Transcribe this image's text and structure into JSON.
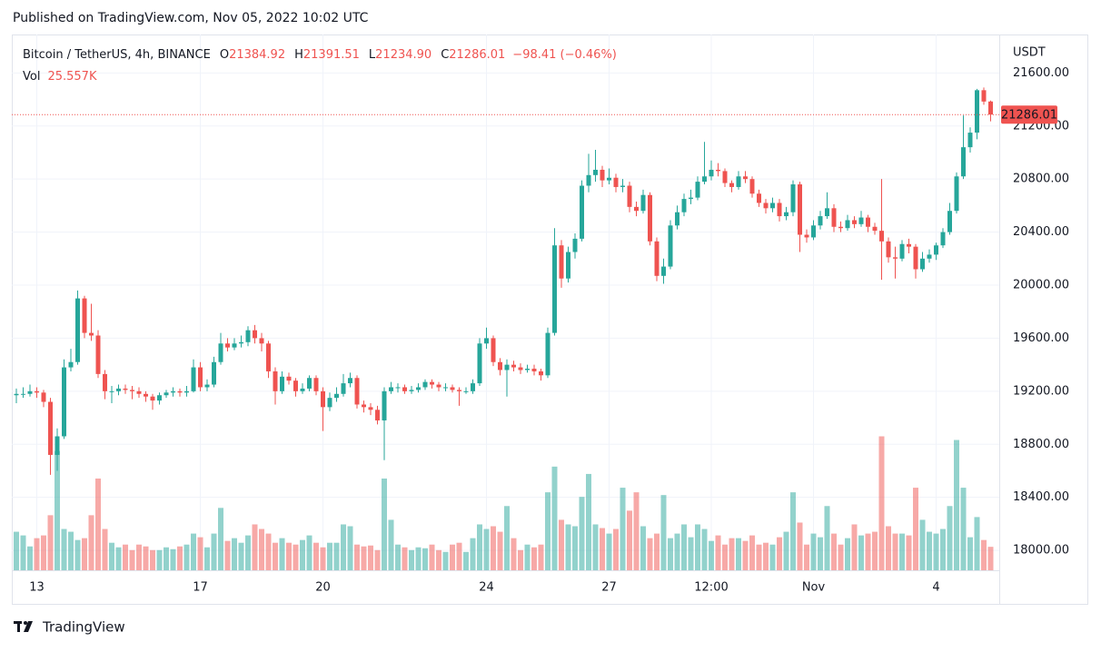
{
  "header": "Published on TradingView.com, Nov 05, 2022 10:02 UTC",
  "footer": "TradingView",
  "chart_data": {
    "type": "candlestick",
    "symbol": "Bitcoin / TetherUS, 4h, BINANCE",
    "ohlc_keys": [
      "O",
      "H",
      "L",
      "C"
    ],
    "legend_values": [
      "21384.92",
      "21391.51",
      "21234.90",
      "21286.01"
    ],
    "change_label": "−98.41 (−0.46%)",
    "volume_name": "Vol",
    "volume_last_label": "25.557K",
    "currency": "USDT",
    "up_color": "#26a69a",
    "down_color": "#ef5350",
    "grid": true,
    "ylim": [
      17850,
      21890
    ],
    "yticks": [
      {
        "value": 18000,
        "label": "18000.00"
      },
      {
        "value": 18400,
        "label": "18400.00"
      },
      {
        "value": 18800,
        "label": "18800.00"
      },
      {
        "value": 19200,
        "label": "19200.00"
      },
      {
        "value": 19600,
        "label": "19600.00"
      },
      {
        "value": 20000,
        "label": "20000.00"
      },
      {
        "value": 20400,
        "label": "20400.00"
      },
      {
        "value": 20800,
        "label": "20800.00"
      },
      {
        "value": 21200,
        "label": "21200.00"
      },
      {
        "value": 21600,
        "label": "21600.00"
      }
    ],
    "xticks": [
      {
        "value": 3,
        "label": "13"
      },
      {
        "value": 27,
        "label": "17"
      },
      {
        "value": 45,
        "label": "20"
      },
      {
        "value": 69,
        "label": "24"
      },
      {
        "value": 87,
        "label": "27"
      },
      {
        "value": 102,
        "label": "12:00"
      },
      {
        "value": 117,
        "label": "Nov"
      },
      {
        "value": 135,
        "label": "4"
      }
    ],
    "ohlc": [
      [
        19170,
        19220,
        19110,
        19180
      ],
      [
        19180,
        19230,
        19150,
        19180
      ],
      [
        19180,
        19250,
        19160,
        19200
      ],
      [
        19200,
        19230,
        19150,
        19190
      ],
      [
        19190,
        19210,
        19080,
        19120
      ],
      [
        19120,
        19150,
        18570,
        18720
      ],
      [
        18720,
        18920,
        18600,
        18860
      ],
      [
        18860,
        19440,
        18840,
        19380
      ],
      [
        19380,
        19520,
        19350,
        19420
      ],
      [
        19420,
        19960,
        19400,
        19900
      ],
      [
        19900,
        19920,
        19600,
        19640
      ],
      [
        19640,
        19860,
        19580,
        19620
      ],
      [
        19620,
        19660,
        19300,
        19330
      ],
      [
        19330,
        19360,
        19140,
        19200
      ],
      [
        19200,
        19240,
        19110,
        19200
      ],
      [
        19200,
        19250,
        19170,
        19220
      ],
      [
        19220,
        19250,
        19180,
        19210
      ],
      [
        19210,
        19240,
        19140,
        19200
      ],
      [
        19200,
        19230,
        19150,
        19180
      ],
      [
        19180,
        19200,
        19120,
        19160
      ],
      [
        19160,
        19180,
        19060,
        19130
      ],
      [
        19130,
        19190,
        19100,
        19170
      ],
      [
        19170,
        19210,
        19150,
        19190
      ],
      [
        19190,
        19230,
        19160,
        19200
      ],
      [
        19200,
        19220,
        19160,
        19190
      ],
      [
        19190,
        19240,
        19160,
        19200
      ],
      [
        19200,
        19440,
        19190,
        19380
      ],
      [
        19380,
        19420,
        19200,
        19230
      ],
      [
        19230,
        19290,
        19200,
        19250
      ],
      [
        19250,
        19460,
        19230,
        19420
      ],
      [
        19420,
        19640,
        19400,
        19560
      ],
      [
        19560,
        19600,
        19500,
        19530
      ],
      [
        19530,
        19600,
        19510,
        19560
      ],
      [
        19560,
        19620,
        19530,
        19570
      ],
      [
        19570,
        19690,
        19540,
        19660
      ],
      [
        19660,
        19700,
        19560,
        19600
      ],
      [
        19600,
        19640,
        19500,
        19560
      ],
      [
        19560,
        19580,
        19300,
        19350
      ],
      [
        19350,
        19380,
        19100,
        19200
      ],
      [
        19200,
        19350,
        19180,
        19310
      ],
      [
        19310,
        19340,
        19250,
        19280
      ],
      [
        19280,
        19300,
        19160,
        19200
      ],
      [
        19200,
        19260,
        19180,
        19220
      ],
      [
        19220,
        19320,
        19200,
        19300
      ],
      [
        19300,
        19320,
        19170,
        19200
      ],
      [
        19200,
        19230,
        18900,
        19080
      ],
      [
        19080,
        19190,
        19050,
        19150
      ],
      [
        19150,
        19230,
        19120,
        19180
      ],
      [
        19180,
        19330,
        19160,
        19260
      ],
      [
        19260,
        19340,
        19230,
        19300
      ],
      [
        19300,
        19320,
        19070,
        19100
      ],
      [
        19100,
        19130,
        19040,
        19080
      ],
      [
        19080,
        19110,
        19020,
        19060
      ],
      [
        19060,
        19090,
        18950,
        18980
      ],
      [
        18980,
        19230,
        18680,
        19200
      ],
      [
        19200,
        19270,
        19180,
        19230
      ],
      [
        19230,
        19260,
        19190,
        19230
      ],
      [
        19230,
        19250,
        19180,
        19200
      ],
      [
        19200,
        19240,
        19180,
        19210
      ],
      [
        19210,
        19260,
        19190,
        19230
      ],
      [
        19230,
        19290,
        19210,
        19270
      ],
      [
        19270,
        19290,
        19220,
        19250
      ],
      [
        19250,
        19270,
        19200,
        19230
      ],
      [
        19230,
        19260,
        19200,
        19230
      ],
      [
        19230,
        19250,
        19190,
        19210
      ],
      [
        19210,
        19230,
        19090,
        19200
      ],
      [
        19200,
        19230,
        19180,
        19200
      ],
      [
        19200,
        19290,
        19180,
        19260
      ],
      [
        19260,
        19600,
        19240,
        19560
      ],
      [
        19560,
        19680,
        19520,
        19600
      ],
      [
        19600,
        19620,
        19390,
        19420
      ],
      [
        19420,
        19450,
        19320,
        19360
      ],
      [
        19360,
        19440,
        19160,
        19400
      ],
      [
        19400,
        19430,
        19350,
        19380
      ],
      [
        19380,
        19410,
        19330,
        19360
      ],
      [
        19360,
        19400,
        19340,
        19370
      ],
      [
        19370,
        19400,
        19320,
        19350
      ],
      [
        19350,
        19370,
        19280,
        19320
      ],
      [
        19320,
        19680,
        19300,
        19640
      ],
      [
        19640,
        20430,
        19620,
        20300
      ],
      [
        20300,
        20340,
        19980,
        20050
      ],
      [
        20050,
        20290,
        20020,
        20250
      ],
      [
        20250,
        20390,
        20200,
        20350
      ],
      [
        20350,
        20790,
        20330,
        20750
      ],
      [
        20750,
        20990,
        20700,
        20830
      ],
      [
        20830,
        21020,
        20780,
        20870
      ],
      [
        20870,
        20900,
        20740,
        20790
      ],
      [
        20790,
        20880,
        20760,
        20810
      ],
      [
        20810,
        20840,
        20700,
        20740
      ],
      [
        20740,
        20800,
        20700,
        20750
      ],
      [
        20750,
        20780,
        20550,
        20590
      ],
      [
        20590,
        20630,
        20520,
        20560
      ],
      [
        20560,
        20720,
        20540,
        20680
      ],
      [
        20680,
        20700,
        20300,
        20330
      ],
      [
        20330,
        20360,
        20030,
        20070
      ],
      [
        20070,
        20200,
        20010,
        20140
      ],
      [
        20140,
        20490,
        20120,
        20450
      ],
      [
        20450,
        20600,
        20420,
        20550
      ],
      [
        20550,
        20690,
        20520,
        20650
      ],
      [
        20650,
        20720,
        20610,
        20660
      ],
      [
        20660,
        20820,
        20640,
        20780
      ],
      [
        20780,
        21080,
        20760,
        20820
      ],
      [
        20820,
        20940,
        20790,
        20870
      ],
      [
        20870,
        20920,
        20820,
        20860
      ],
      [
        20860,
        20880,
        20740,
        20770
      ],
      [
        20770,
        20790,
        20700,
        20740
      ],
      [
        20740,
        20860,
        20720,
        20820
      ],
      [
        20820,
        20860,
        20770,
        20800
      ],
      [
        20800,
        20820,
        20660,
        20690
      ],
      [
        20690,
        20720,
        20590,
        20620
      ],
      [
        20620,
        20650,
        20540,
        20580
      ],
      [
        20580,
        20660,
        20550,
        20620
      ],
      [
        20620,
        20650,
        20480,
        20520
      ],
      [
        20520,
        20590,
        20490,
        20550
      ],
      [
        20550,
        20790,
        20520,
        20760
      ],
      [
        20760,
        20780,
        20250,
        20380
      ],
      [
        20380,
        20420,
        20320,
        20360
      ],
      [
        20360,
        20490,
        20340,
        20450
      ],
      [
        20450,
        20560,
        20420,
        20520
      ],
      [
        20520,
        20700,
        20500,
        20580
      ],
      [
        20580,
        20610,
        20400,
        20440
      ],
      [
        20440,
        20480,
        20400,
        20430
      ],
      [
        20430,
        20530,
        20410,
        20490
      ],
      [
        20490,
        20520,
        20430,
        20460
      ],
      [
        20460,
        20560,
        20440,
        20510
      ],
      [
        20510,
        20530,
        20400,
        20440
      ],
      [
        20440,
        20470,
        20380,
        20410
      ],
      [
        20410,
        20800,
        20040,
        20330
      ],
      [
        20330,
        20360,
        20170,
        20210
      ],
      [
        20210,
        20290,
        20050,
        20200
      ],
      [
        20200,
        20340,
        20180,
        20310
      ],
      [
        20310,
        20350,
        20240,
        20290
      ],
      [
        20290,
        20310,
        20050,
        20120
      ],
      [
        20120,
        20250,
        20100,
        20200
      ],
      [
        20200,
        20270,
        20170,
        20230
      ],
      [
        20230,
        20320,
        20190,
        20300
      ],
      [
        20300,
        20430,
        20280,
        20400
      ],
      [
        20400,
        20620,
        20380,
        20560
      ],
      [
        20560,
        20850,
        20540,
        20820
      ],
      [
        20820,
        21280,
        20800,
        21040
      ],
      [
        21040,
        21190,
        21000,
        21150
      ],
      [
        21150,
        21480,
        21100,
        21470
      ],
      [
        21470,
        21490,
        21360,
        21384.42
      ],
      [
        21384.92,
        21391.51,
        21234.9,
        21286.01
      ]
    ],
    "volume": [
      42,
      38,
      26,
      35,
      38,
      60,
      130,
      45,
      42,
      33,
      35,
      60,
      100,
      45,
      30,
      25,
      28,
      22,
      28,
      26,
      22,
      22,
      25,
      23,
      26,
      28,
      40,
      36,
      25,
      40,
      68,
      32,
      35,
      30,
      38,
      50,
      45,
      40,
      30,
      35,
      30,
      28,
      33,
      38,
      30,
      25,
      30,
      30,
      50,
      48,
      28,
      26,
      27,
      22,
      100,
      55,
      28,
      25,
      22,
      25,
      24,
      28,
      22,
      20,
      28,
      30,
      20,
      35,
      50,
      45,
      48,
      42,
      70,
      35,
      22,
      28,
      25,
      28,
      85,
      113,
      55,
      50,
      48,
      80,
      105,
      50,
      46,
      40,
      45,
      90,
      65,
      85,
      48,
      35,
      40,
      82,
      35,
      40,
      50,
      36,
      50,
      45,
      32,
      38,
      28,
      35,
      35,
      32,
      38,
      28,
      30,
      28,
      36,
      42,
      85,
      52,
      28,
      40,
      36,
      70,
      40,
      28,
      35,
      50,
      38,
      40,
      42,
      146,
      48,
      40,
      40,
      38,
      90,
      55,
      42,
      40,
      45,
      70,
      142,
      90,
      36,
      58,
      33,
      25.557
    ]
  }
}
